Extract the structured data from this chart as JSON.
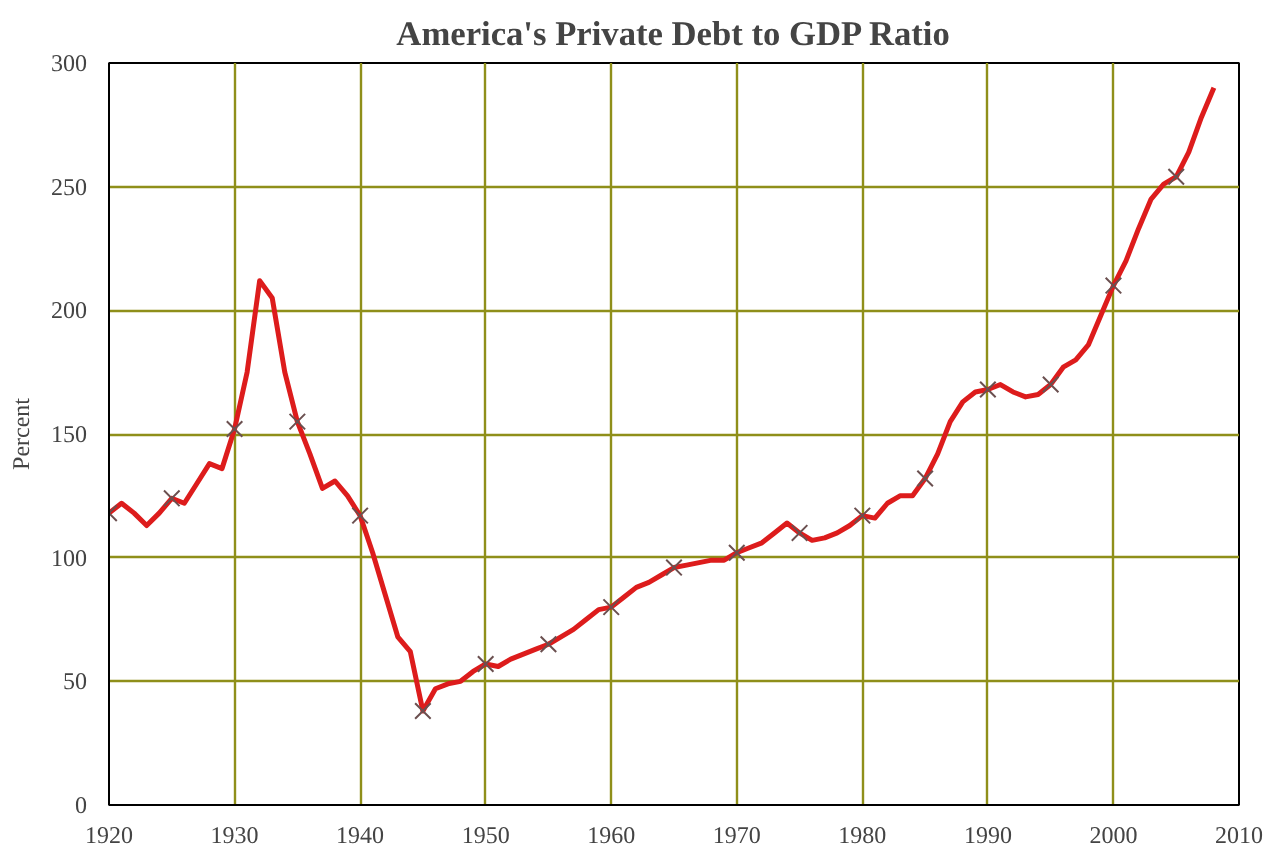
{
  "chart_data": {
    "type": "line",
    "title": "America's Private Debt to GDP Ratio",
    "ylabel": "Percent",
    "xlim": [
      1920,
      2010
    ],
    "ylim": [
      0,
      300
    ],
    "xticks": [
      1920,
      1930,
      1940,
      1950,
      1960,
      1970,
      1980,
      1990,
      2000,
      2010
    ],
    "yticks": [
      0,
      50,
      100,
      150,
      200,
      250,
      300
    ],
    "grid": true,
    "series": [
      {
        "color": "#dd1c1c",
        "marker": "none",
        "x": [
          1920,
          1921,
          1922,
          1923,
          1924,
          1925,
          1926,
          1927,
          1928,
          1929,
          1930,
          1931,
          1932,
          1933,
          1934,
          1935,
          1936,
          1937,
          1938,
          1939,
          1940,
          1941,
          1942,
          1943,
          1944,
          1945,
          1946,
          1947,
          1948,
          1949,
          1950,
          1951,
          1952,
          1953,
          1954,
          1955,
          1956,
          1957,
          1958,
          1959,
          1960,
          1961,
          1962,
          1963,
          1964,
          1965,
          1966,
          1967,
          1968,
          1969,
          1970,
          1971,
          1972,
          1973,
          1974,
          1975,
          1976,
          1977,
          1978,
          1979,
          1980,
          1981,
          1982,
          1983,
          1984,
          1985,
          1986,
          1987,
          1988,
          1989,
          1990,
          1991,
          1992,
          1993,
          1994,
          1995,
          1996,
          1997,
          1998,
          1999,
          2000,
          2001,
          2002,
          2003,
          2004,
          2005,
          2006,
          2007,
          2008
        ],
        "values": [
          118,
          122,
          118,
          113,
          118,
          124,
          122,
          130,
          138,
          136,
          152,
          175,
          212,
          205,
          175,
          155,
          142,
          128,
          131,
          125,
          117,
          102,
          85,
          68,
          62,
          38,
          47,
          49,
          50,
          54,
          57,
          56,
          59,
          61,
          63,
          65,
          68,
          71,
          75,
          79,
          80,
          84,
          88,
          90,
          93,
          96,
          97,
          98,
          99,
          99,
          102,
          104,
          106,
          110,
          114,
          110,
          107,
          108,
          110,
          113,
          117,
          116,
          122,
          125,
          125,
          132,
          142,
          155,
          163,
          167,
          168,
          170,
          167,
          165,
          166,
          170,
          177,
          180,
          186,
          198,
          210,
          220,
          233,
          245,
          251,
          254,
          264,
          278,
          290
        ]
      },
      {
        "type": "scatter",
        "color": "#6b5050",
        "marker": "cross",
        "x": [
          1920,
          1925,
          1930,
          1935,
          1940,
          1945,
          1950,
          1955,
          1960,
          1965,
          1970,
          1975,
          1980,
          1985,
          1990,
          1995,
          2000,
          2005
        ],
        "values": [
          118,
          124,
          152,
          155,
          117,
          38,
          57,
          65,
          80,
          96,
          102,
          110,
          117,
          132,
          168,
          170,
          210,
          254
        ]
      }
    ]
  }
}
